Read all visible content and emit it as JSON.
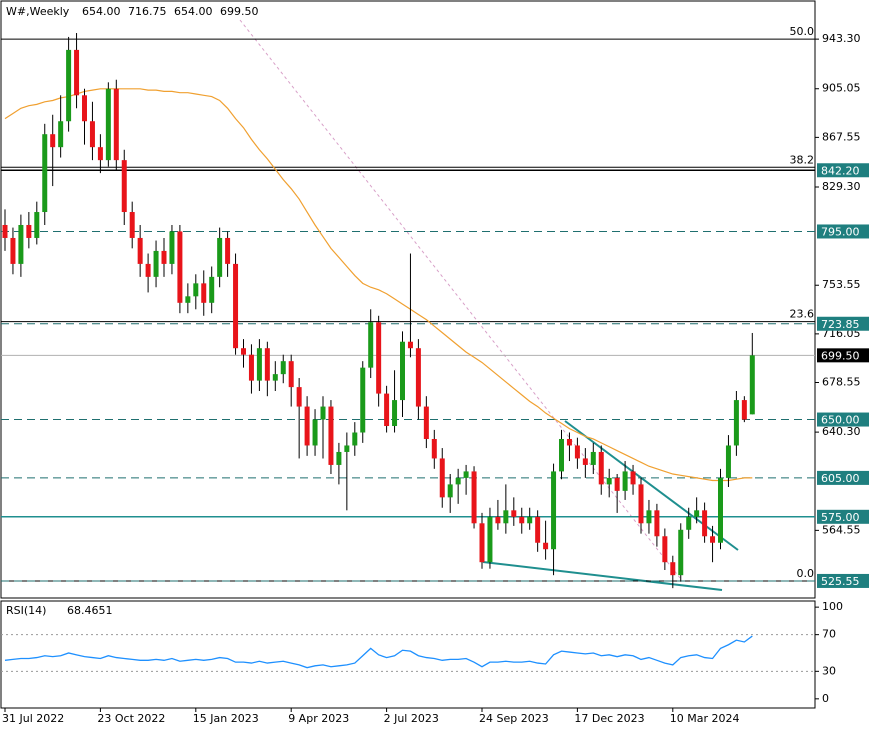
{
  "header": {
    "symbol": "W#,Weekly",
    "ohlc_labels": [
      "654.00",
      "716.75",
      "654.00",
      "699.50"
    ]
  },
  "chart_data": {
    "type": "candlestick",
    "categories": [
      "31 Jul 2022",
      null,
      null,
      null,
      null,
      null,
      null,
      null,
      null,
      null,
      null,
      null,
      "23 Oct 2022",
      null,
      null,
      null,
      null,
      null,
      null,
      null,
      null,
      null,
      null,
      null,
      "15 Jan 2023",
      null,
      null,
      null,
      null,
      null,
      null,
      null,
      null,
      null,
      null,
      null,
      "9 Apr 2023",
      null,
      null,
      null,
      null,
      null,
      null,
      null,
      null,
      null,
      null,
      null,
      "2 Jul 2023",
      null,
      null,
      null,
      null,
      null,
      null,
      null,
      null,
      null,
      null,
      null,
      "24 Sep 2023",
      null,
      null,
      null,
      null,
      null,
      null,
      null,
      null,
      null,
      null,
      null,
      "17 Dec 2023",
      null,
      null,
      null,
      null,
      null,
      null,
      null,
      null,
      null,
      null,
      null,
      "10 Mar 2024",
      null,
      null,
      null,
      null,
      null,
      null,
      null,
      null,
      null,
      null
    ],
    "ohlc": [
      [
        800,
        812,
        780,
        790
      ],
      [
        790,
        798,
        762,
        770
      ],
      [
        770,
        808,
        760,
        800
      ],
      [
        800,
        810,
        782,
        790
      ],
      [
        790,
        818,
        785,
        810
      ],
      [
        810,
        878,
        800,
        870
      ],
      [
        870,
        885,
        830,
        860
      ],
      [
        860,
        900,
        852,
        880
      ],
      [
        880,
        945,
        872,
        935
      ],
      [
        935,
        948,
        890,
        900
      ],
      [
        900,
        905,
        862,
        880
      ],
      [
        880,
        895,
        850,
        860
      ],
      [
        860,
        870,
        840,
        850
      ],
      [
        850,
        910,
        845,
        905
      ],
      [
        905,
        912,
        842,
        850
      ],
      [
        850,
        858,
        800,
        810
      ],
      [
        810,
        818,
        782,
        790
      ],
      [
        790,
        800,
        760,
        770
      ],
      [
        770,
        778,
        748,
        760
      ],
      [
        760,
        788,
        752,
        780
      ],
      [
        780,
        790,
        760,
        770
      ],
      [
        770,
        800,
        762,
        795
      ],
      [
        795,
        800,
        732,
        740
      ],
      [
        740,
        755,
        732,
        745
      ],
      [
        745,
        762,
        735,
        755
      ],
      [
        755,
        765,
        730,
        740
      ],
      [
        740,
        768,
        732,
        760
      ],
      [
        760,
        798,
        752,
        790
      ],
      [
        790,
        795,
        760,
        770
      ],
      [
        770,
        778,
        700,
        705
      ],
      [
        705,
        712,
        690,
        700
      ],
      [
        700,
        708,
        670,
        680
      ],
      [
        680,
        712,
        672,
        705
      ],
      [
        705,
        710,
        668,
        680
      ],
      [
        680,
        695,
        672,
        685
      ],
      [
        685,
        700,
        678,
        695
      ],
      [
        695,
        700,
        660,
        675
      ],
      [
        675,
        682,
        620,
        660
      ],
      [
        660,
        668,
        622,
        630
      ],
      [
        630,
        658,
        622,
        650
      ],
      [
        650,
        668,
        620,
        660
      ],
      [
        660,
        665,
        608,
        615
      ],
      [
        615,
        632,
        600,
        625
      ],
      [
        625,
        640,
        580,
        630
      ],
      [
        630,
        648,
        622,
        640
      ],
      [
        640,
        695,
        632,
        690
      ],
      [
        690,
        735,
        682,
        725
      ],
      [
        725,
        730,
        660,
        670
      ],
      [
        670,
        676,
        640,
        645
      ],
      [
        645,
        688,
        640,
        665
      ],
      [
        665,
        718,
        652,
        710
      ],
      [
        710,
        778,
        698,
        705
      ],
      [
        705,
        712,
        650,
        660
      ],
      [
        660,
        668,
        628,
        635
      ],
      [
        635,
        642,
        612,
        620
      ],
      [
        620,
        628,
        582,
        590
      ],
      [
        590,
        608,
        578,
        600
      ],
      [
        600,
        612,
        585,
        605
      ],
      [
        605,
        615,
        592,
        610
      ],
      [
        610,
        614,
        566,
        570
      ],
      [
        570,
        578,
        535,
        540
      ],
      [
        540,
        582,
        535,
        575
      ],
      [
        575,
        588,
        565,
        570
      ],
      [
        570,
        600,
        562,
        580
      ],
      [
        580,
        590,
        568,
        575
      ],
      [
        575,
        582,
        562,
        570
      ],
      [
        570,
        582,
        565,
        575
      ],
      [
        575,
        580,
        548,
        555
      ],
      [
        555,
        572,
        542,
        550
      ],
      [
        550,
        616,
        530,
        610
      ],
      [
        610,
        642,
        604,
        635
      ],
      [
        635,
        640,
        618,
        630
      ],
      [
        630,
        636,
        612,
        620
      ],
      [
        620,
        628,
        605,
        615
      ],
      [
        615,
        632,
        608,
        625
      ],
      [
        625,
        630,
        592,
        600
      ],
      [
        600,
        612,
        590,
        605
      ],
      [
        605,
        608,
        578,
        595
      ],
      [
        595,
        618,
        588,
        610
      ],
      [
        610,
        615,
        592,
        600
      ],
      [
        600,
        605,
        562,
        570
      ],
      [
        570,
        588,
        562,
        580
      ],
      [
        580,
        585,
        552,
        560
      ],
      [
        560,
        566,
        534,
        540
      ],
      [
        540,
        545,
        520,
        530
      ],
      [
        530,
        570,
        525,
        565
      ],
      [
        565,
        582,
        558,
        575
      ],
      [
        575,
        590,
        570,
        580
      ],
      [
        580,
        586,
        555,
        560
      ],
      [
        560,
        568,
        540,
        555
      ],
      [
        555,
        612,
        550,
        605
      ],
      [
        605,
        638,
        598,
        630
      ],
      [
        630,
        672,
        622,
        665
      ],
      [
        665,
        668,
        648,
        650
      ],
      [
        654,
        716.75,
        654,
        699.5
      ]
    ],
    "up_color": "#1a9a1a",
    "down_color": "#e8141a",
    "ma": {
      "color": "#f0a030",
      "values": [
        882,
        886,
        890,
        892,
        893,
        895,
        896,
        898,
        899,
        901,
        903,
        904,
        905,
        905,
        905,
        905,
        905,
        905,
        904,
        904,
        903,
        903,
        902,
        902,
        901,
        900,
        899,
        896,
        890,
        882,
        875,
        866,
        858,
        851,
        843,
        835,
        828,
        820,
        810,
        800,
        791,
        782,
        775,
        768,
        761,
        755,
        752,
        750,
        747,
        743,
        739,
        735,
        731,
        727,
        722,
        717,
        712,
        707,
        702,
        698,
        694,
        689,
        684,
        679,
        674,
        669,
        664,
        660,
        655,
        651,
        647,
        643,
        640,
        637,
        635,
        632,
        629,
        626,
        623,
        620,
        617,
        614,
        612,
        610,
        608,
        607,
        606,
        605,
        604,
        603,
        603,
        603,
        604,
        605,
        605
      ]
    },
    "ylim": [
      512.4,
      972.7
    ],
    "yticks": [
      {
        "value": 943.3,
        "label": "943.30"
      },
      905.05,
      867.55,
      {
        "value": 829.3,
        "label": "829.30"
      },
      753.55,
      716.05,
      678.55,
      {
        "value": 640.3,
        "label": "640.30"
      },
      564.55
    ],
    "levels": [
      {
        "value": 842.2,
        "label": "842.20",
        "dashed": false,
        "line_color": "#000000"
      },
      {
        "value": 795,
        "label": "795.00",
        "dashed": true,
        "line_color": "#1f6f6f"
      },
      {
        "value": 723.85,
        "label": "723.85",
        "dashed": true,
        "line_color": "#1f6f6f"
      },
      {
        "value": 650,
        "label": "650.00",
        "dashed": true,
        "line_color": "#1f6f6f"
      },
      {
        "value": 605,
        "label": "605.00",
        "dashed": true,
        "line_color": "#1f6f6f"
      },
      {
        "value": 575,
        "label": "575.00",
        "dashed": false,
        "line_color": "#1f8f8f"
      },
      {
        "value": 525.55,
        "label": "525.55",
        "dashed": true,
        "line_color": "#1f6f6f"
      }
    ],
    "level_box_color": "#1f7f7f",
    "current_price": {
      "value": 699.5,
      "label": "699.50"
    },
    "fib": [
      {
        "value": 943.3,
        "label": "50.0"
      },
      {
        "value": 844.5,
        "label": "38.2"
      },
      {
        "value": 725.5,
        "label": "23.6"
      },
      {
        "value": 525.55,
        "label": "0.0"
      }
    ],
    "rsi": {
      "name": "RSI(14)",
      "color": "#1e90ff",
      "ylim": [
        -10,
        106.7
      ],
      "yticks": [
        100,
        70,
        30,
        0
      ],
      "levels": [
        70,
        30
      ],
      "values": [
        42,
        43,
        44,
        44,
        45,
        47,
        46,
        47,
        50,
        48,
        46,
        45,
        44,
        47,
        45,
        44,
        43,
        42,
        42,
        43,
        42,
        44,
        41,
        42,
        43,
        42,
        43,
        45,
        44,
        40,
        40,
        39,
        41,
        39,
        40,
        41,
        39,
        37,
        34,
        36,
        37,
        35,
        36,
        37,
        39,
        47,
        55,
        48,
        45,
        47,
        53,
        52,
        47,
        45,
        44,
        42,
        43,
        43,
        44,
        40,
        35,
        40,
        40,
        41,
        40,
        40,
        41,
        39,
        38,
        48,
        52,
        51,
        50,
        49,
        50,
        47,
        48,
        46,
        48,
        47,
        43,
        45,
        42,
        39,
        37,
        45,
        47,
        48,
        45,
        44,
        55,
        59,
        64,
        62,
        68.4651
      ]
    }
  }
}
